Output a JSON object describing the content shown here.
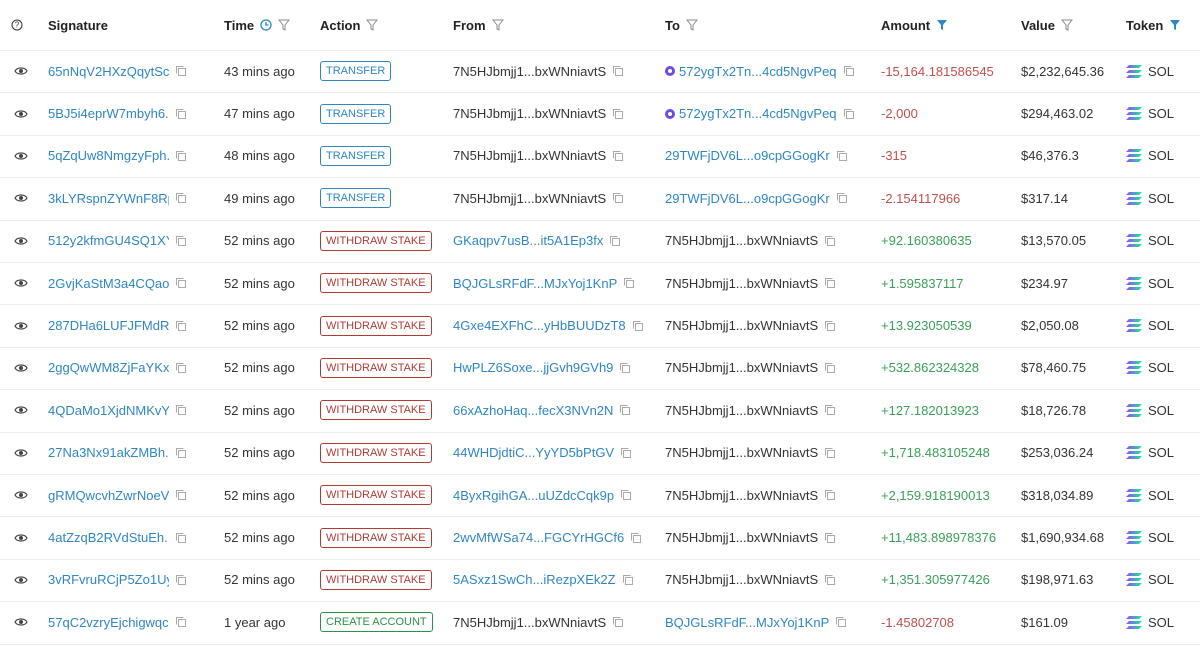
{
  "table": {
    "headers": [
      "Signature",
      "Time",
      "Action",
      "From",
      "To",
      "Amount",
      "Value",
      "Token"
    ],
    "rows": [
      [
        "65nNqV2HXzQqytSc...",
        "43 mins ago",
        "TRANSFER",
        "7N5HJbmjj1...bxWNniavtS",
        "572ygTx2Tn...4cd5NgvPeq",
        "-15,164.181586545",
        "$2,232,645.36",
        "SOL"
      ],
      [
        "5BJ5i4eprW7mbyh6...",
        "47 mins ago",
        "TRANSFER",
        "7N5HJbmjj1...bxWNniavtS",
        "572ygTx2Tn...4cd5NgvPeq",
        "-2,000",
        "$294,463.02",
        "SOL"
      ],
      [
        "5qZqUw8NmgzyFph...",
        "48 mins ago",
        "TRANSFER",
        "7N5HJbmjj1...bxWNniavtS",
        "29TWFjDV6L...o9cpGGogKr",
        "-315",
        "$46,376.3",
        "SOL"
      ],
      [
        "3kLYRspnZYWnF8Rp...",
        "49 mins ago",
        "TRANSFER",
        "7N5HJbmjj1...bxWNniavtS",
        "29TWFjDV6L...o9cpGGogKr",
        "-2.154117966",
        "$317.14",
        "SOL"
      ],
      [
        "512y2kfmGU4SQ1XY...",
        "52 mins ago",
        "WITHDRAW STAKE",
        "GKaqpv7usB...it5A1Ep3fx",
        "7N5HJbmjj1...bxWNniavtS",
        "+92.160380635",
        "$13,570.05",
        "SOL"
      ],
      [
        "2GvjKaStM3a4CQao...",
        "52 mins ago",
        "WITHDRAW STAKE",
        "BQJGLsRFdF...MJxYoj1KnP",
        "7N5HJbmjj1...bxWNniavtS",
        "+1.595837117",
        "$234.97",
        "SOL"
      ],
      [
        "287DHa6LUFJFMdR...",
        "52 mins ago",
        "WITHDRAW STAKE",
        "4Gxe4EXFhC...yHbBUUDzT8",
        "7N5HJbmjj1...bxWNniavtS",
        "+13.923050539",
        "$2,050.08",
        "SOL"
      ],
      [
        "2ggQwWM8ZjFaYKx...",
        "52 mins ago",
        "WITHDRAW STAKE",
        "HwPLZ6Soxe...jjGvh9GVh9",
        "7N5HJbmjj1...bxWNniavtS",
        "+532.862324328",
        "$78,460.75",
        "SOL"
      ],
      [
        "4QDaMo1XjdNMKvY...",
        "52 mins ago",
        "WITHDRAW STAKE",
        "66xAzhoHaq...fecX3NVn2N",
        "7N5HJbmjj1...bxWNniavtS",
        "+127.182013923",
        "$18,726.78",
        "SOL"
      ],
      [
        "27Na3Nx91akZMBh...",
        "52 mins ago",
        "WITHDRAW STAKE",
        "44WHDjdtiC...YyYD5bPtGV",
        "7N5HJbmjj1...bxWNniavtS",
        "+1,718.483105248",
        "$253,036.24",
        "SOL"
      ],
      [
        "gRMQwcvhZwrNoeV...",
        "52 mins ago",
        "WITHDRAW STAKE",
        "4ByxRgihGA...uUZdcCqk9p",
        "7N5HJbmjj1...bxWNniavtS",
        "+2,159.918190013",
        "$318,034.89",
        "SOL"
      ],
      [
        "4atZzqB2RVdStuEh...",
        "52 mins ago",
        "WITHDRAW STAKE",
        "2wvMfWSa74...FGCYrHGCf6",
        "7N5HJbmjj1...bxWNniavtS",
        "+11,483.898978376",
        "$1,690,934.68",
        "SOL"
      ],
      [
        "3vRFvruRCjP5Zo1Uy...",
        "52 mins ago",
        "WITHDRAW STAKE",
        "5ASxz1SwCh...iRezpXEk2Z",
        "7N5HJbmjj1...bxWNniavtS",
        "+1,351.305977426",
        "$198,971.63",
        "SOL"
      ],
      [
        "57qC2vzryEjchigwqc...",
        "1 year ago",
        "CREATE ACCOUNT",
        "7N5HJbmjj1...bxWNniavtS",
        "BQJGLsRFdF...MJxYoj1KnP",
        "-1.45802708",
        "$161.09",
        "SOL"
      ]
    ]
  }
}
